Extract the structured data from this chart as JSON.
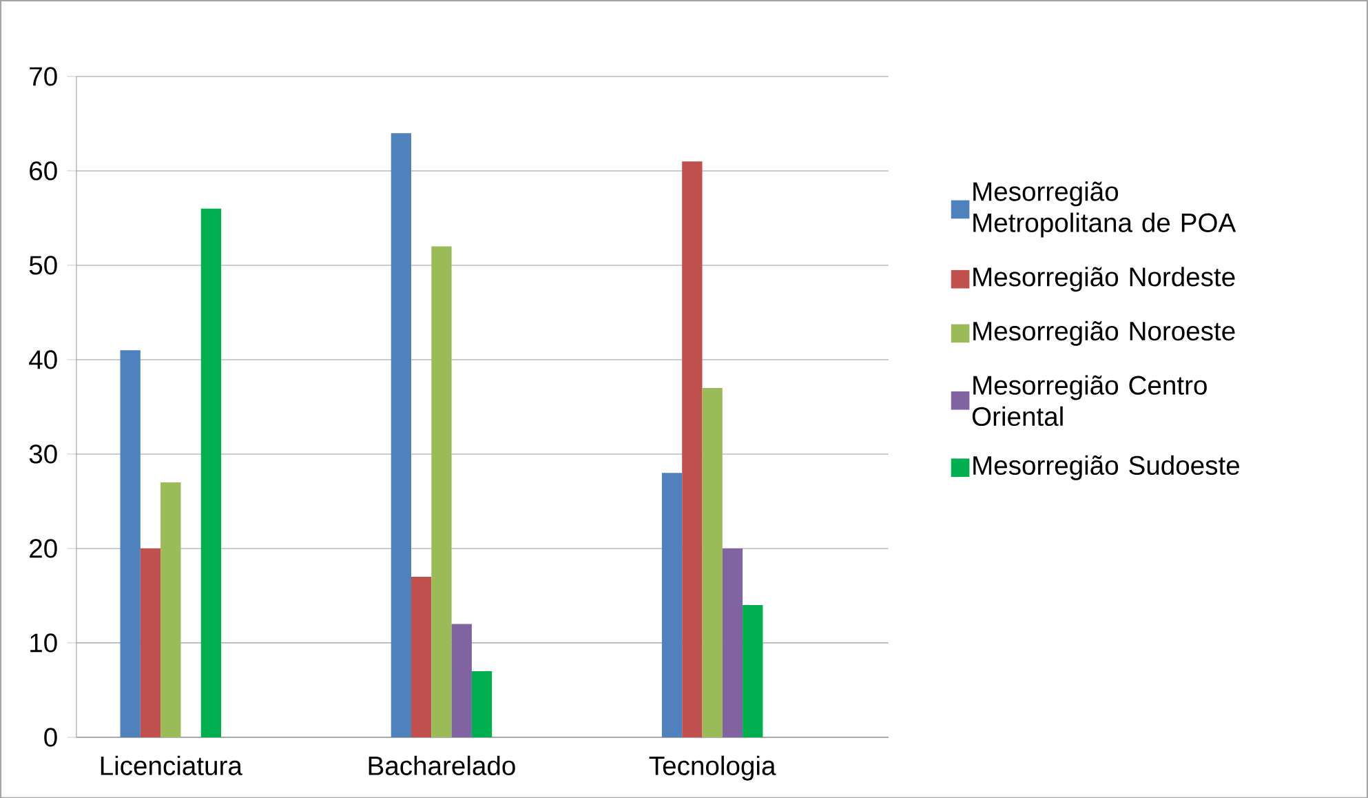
{
  "chart_data": {
    "type": "bar",
    "categories": [
      "Licenciatura",
      "Bacharelado",
      "Tecnologia"
    ],
    "series": [
      {
        "name": "Mesorregião Metropolitana de POA",
        "color": "#4f81bd",
        "values": [
          41,
          64,
          28
        ]
      },
      {
        "name": "Mesorregião Nordeste",
        "color": "#c0504d",
        "values": [
          20,
          17,
          61
        ]
      },
      {
        "name": "Mesorregião Noroeste",
        "color": "#9bbb59",
        "values": [
          27,
          52,
          37
        ]
      },
      {
        "name": "Mesorregião Centro Oriental",
        "color": "#8064a2",
        "values": [
          null,
          12,
          20
        ]
      },
      {
        "name": "Mesorregião Sudoeste",
        "color": "#00b050",
        "values": [
          56,
          7,
          14
        ]
      }
    ],
    "ylim": [
      0,
      70
    ],
    "yticks": [
      0,
      10,
      20,
      30,
      40,
      50,
      60,
      70
    ],
    "grid": "y",
    "legend": "right"
  }
}
